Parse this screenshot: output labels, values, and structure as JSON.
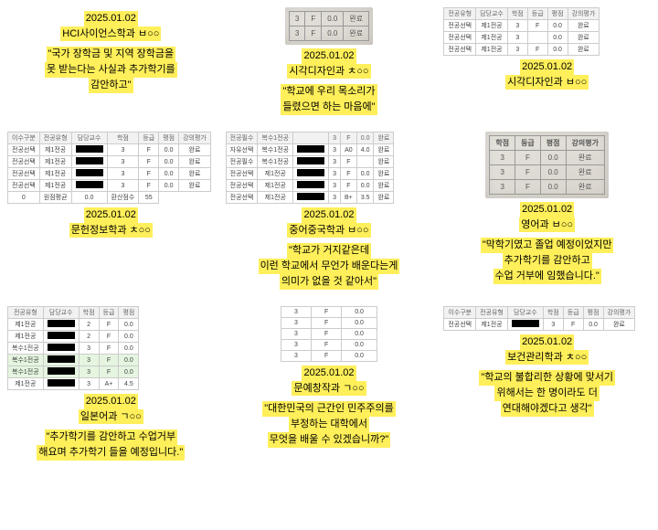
{
  "items": [
    {
      "date": "2025.01.02",
      "dept": "HCI사이언스학과 ㅂ○○",
      "quote": [
        "\"국가 장학금 및 지역 장학금을",
        "못 받는다는 사실과 추가학기를",
        "감안하고\""
      ],
      "table": null
    },
    {
      "date": "2025.01.02",
      "dept": "시각디자인과 ㅊ○○",
      "quote": [
        "\"학교에 우리 목소리가",
        "들렸으면 하는 마음에\""
      ],
      "photo_rows": [
        [
          "3",
          "F",
          "0.0",
          "완료"
        ],
        [
          "3",
          "F",
          "0.0",
          "완료"
        ]
      ]
    },
    {
      "date": "2025.01.02",
      "dept": "시각디자인과 ㅂ○○",
      "quote": null,
      "table": {
        "headers": [
          "전공유형",
          "담당교수",
          "학점",
          "등급",
          "평점",
          "강의평가"
        ],
        "rows": [
          [
            "전공선택",
            "제1전공",
            "3",
            "F",
            "0.0",
            "완료"
          ],
          [
            "전공선택",
            "제1전공",
            "3",
            "",
            "0.0",
            "완료"
          ],
          [
            "전공선택",
            "제1전공",
            "3",
            "F",
            "0.0",
            "완료"
          ]
        ]
      }
    },
    {
      "date": "2025.01.02",
      "dept": "문헌정보학과 ㅊ○○",
      "quote": null,
      "table": {
        "headers": [
          "이수구분",
          "전공유형",
          "담당교수",
          "학점",
          "등급",
          "평점",
          "강의평가"
        ],
        "rows": [
          [
            "전공선택",
            "제1전공",
            "",
            "3",
            "F",
            "0.0",
            "완료"
          ],
          [
            "전공선택",
            "제1전공",
            "",
            "3",
            "F",
            "0.0",
            "완료"
          ],
          [
            "전공선택",
            "제1전공",
            "",
            "3",
            "F",
            "0.0",
            "완료"
          ],
          [
            "전공선택",
            "제1전공",
            "",
            "3",
            "F",
            "0.0",
            "완료"
          ]
        ],
        "footer": [
          "0",
          "원점평균",
          "0.0",
          "환산점수",
          "55"
        ]
      }
    },
    {
      "date": "2025.01.02",
      "dept": "중어중국학과 ㅂ○○",
      "quote": [
        "\"학교가 거지같은데",
        "이런 학교에서 무언가 배운다는게",
        "의미가 없을 것 같아서\""
      ],
      "table": {
        "headers": [
          "전공필수",
          "복수1전공",
          "",
          "3",
          "F",
          "0.0",
          "완료"
        ],
        "rows": [
          [
            "자유선택",
            "복수1전공",
            "",
            "3",
            "A0",
            "4.0",
            "완료"
          ],
          [
            "전공필수",
            "복수1전공",
            "",
            "3",
            "F",
            "",
            "완료"
          ],
          [
            "전공선택",
            "제1전공",
            "",
            "3",
            "F",
            "0.0",
            "완료"
          ],
          [
            "전공선택",
            "제1전공",
            "",
            "3",
            "F",
            "0.0",
            "완료"
          ],
          [
            "전공선택",
            "제1전공",
            "",
            "3",
            "B+",
            "3.5",
            "완료"
          ]
        ]
      }
    },
    {
      "date": "2025.01.02",
      "dept": "영어과 ㅂ○○",
      "quote": [
        "\"막학기였고 졸업 예정이었지만",
        "추가학기를 감안하고",
        "수업 거부에 임했습니다.\""
      ],
      "photo_headers": [
        "학점",
        "등급",
        "평점",
        "강의평가"
      ],
      "photo_rows": [
        [
          "3",
          "F",
          "0.0",
          "완료"
        ],
        [
          "3",
          "F",
          "0.0",
          "완료"
        ],
        [
          "3",
          "F",
          "0.0",
          "완료"
        ]
      ]
    },
    {
      "date": "2025.01.02",
      "dept": "일본어과 ㄱ○○",
      "quote": [
        "\"추가학기를 감안하고 수업거부",
        "해요며 추가학기 들을 예정입니다.\""
      ],
      "table": {
        "headers": [
          "전공유형",
          "담당교수",
          "학점",
          "등급",
          "평점"
        ],
        "rows": [
          [
            "제1전공",
            "",
            "2",
            "F",
            "0.0"
          ],
          [
            "제1전공",
            "",
            "2",
            "F",
            "0.0"
          ],
          [
            "복수1전공",
            "",
            "3",
            "F",
            "0.0"
          ],
          [
            "복수1전공",
            "",
            "3",
            "F",
            "0.0"
          ],
          [
            "복수1전공",
            "",
            "3",
            "F",
            "0.0"
          ],
          [
            "제1전공",
            "",
            "3",
            "A+",
            "4.5"
          ]
        ],
        "green_indices": [
          3,
          4
        ]
      }
    },
    {
      "date": "2025.01.02",
      "dept": "문예창작과 ㄱ○○",
      "quote": [
        "\"대한민국의 근간인 민주주의를",
        "부정하는 대학에서",
        "무엇을 배울 수 있겠습니까?\""
      ],
      "simple_rows": [
        [
          "3",
          "F",
          "0.0"
        ],
        [
          "3",
          "F",
          "0.0"
        ],
        [
          "3",
          "F",
          "0.0"
        ],
        [
          "3",
          "F",
          "0.0"
        ],
        [
          "3",
          "F",
          "0.0"
        ]
      ]
    },
    {
      "date": "2025.01.02",
      "dept": "보건관리학과 ㅊ○○",
      "quote": [
        "\"학교의 불합리한 상황에 맞서기",
        "위해서는 한 명이라도 더",
        "연대해야겠다고 생각\""
      ],
      "table": {
        "headers": [
          "이수구분",
          "전공유형",
          "담당교수",
          "학점",
          "등급",
          "평점",
          "강의평가"
        ],
        "rows": [
          [
            "전공선택",
            "제1전공",
            "",
            "3",
            "F",
            "0.0",
            "완료"
          ]
        ]
      }
    }
  ]
}
